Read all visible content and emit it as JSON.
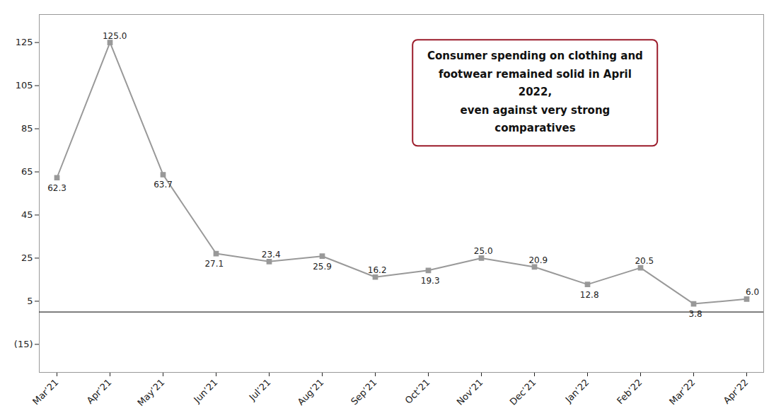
{
  "chart_data": {
    "type": "line",
    "categories": [
      "Mar’21",
      "Apr’21",
      "May’21",
      "Jun’21",
      "Jul’21",
      "Aug’21",
      "Sep’21",
      "Oct’21",
      "Nov’21",
      "Dec’21",
      "Jan’22",
      "Feb’22",
      "Mar’22",
      "Apr’22"
    ],
    "values": [
      62.3,
      125.0,
      63.7,
      27.1,
      23.4,
      25.9,
      16.2,
      19.3,
      25.0,
      20.9,
      12.8,
      20.5,
      3.8,
      6.0
    ],
    "value_labels": [
      "62.3",
      "125.0",
      "63.7",
      "27.1",
      "23.4",
      "25.9",
      "16.2",
      "19.3",
      "25.0",
      "20.9",
      "12.8",
      "20.5",
      "3.8",
      "6.0"
    ],
    "data_labels": true,
    "color": "#999999",
    "marker": "square",
    "ylim": [
      -28,
      138
    ],
    "yticks": [
      {
        "value": -15,
        "label": "(15)"
      },
      5,
      25,
      45,
      65,
      85,
      105,
      125
    ],
    "grid": false,
    "annotations": [
      {
        "text": "Consumer spending on clothing and\nfootwear remained solid in April 2022,\neven against very strong comparatives",
        "color": "#9b1b2a"
      }
    ]
  }
}
